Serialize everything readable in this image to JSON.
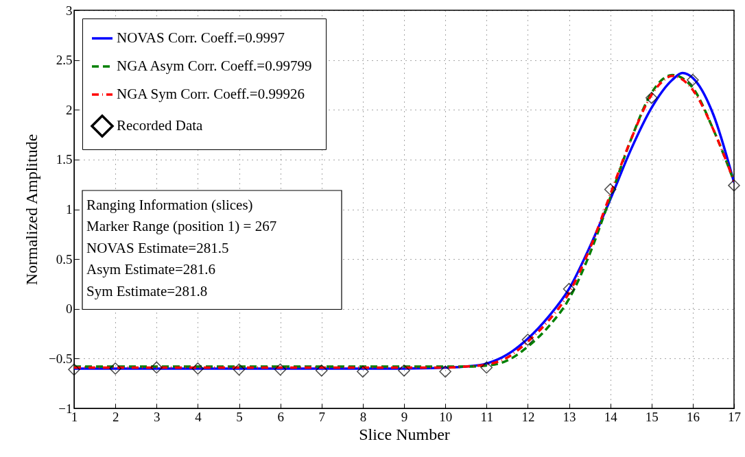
{
  "chart_data": {
    "type": "line",
    "xlabel": "Slice Number",
    "ylabel": "Normalized Amplitude",
    "xlim": [
      1,
      17
    ],
    "xticks": [
      1,
      2,
      3,
      4,
      5,
      6,
      7,
      8,
      9,
      10,
      11,
      12,
      13,
      14,
      15,
      16,
      17
    ],
    "ylim": [
      -1,
      3
    ],
    "yticks": [
      {
        "value": -1,
        "label": "−1"
      },
      {
        "value": -0.5,
        "label": "−0.5"
      },
      0,
      0.5,
      1,
      1.5,
      2,
      2.5,
      3
    ],
    "grid": true,
    "legend": "top left",
    "series": [
      {
        "name": "NOVAS Corr.  Coeff.=0.9997",
        "color": "#0000ff",
        "line_style": "solid",
        "marker": "none",
        "x": [
          1,
          2,
          3,
          4,
          5,
          6,
          7,
          8,
          9,
          10,
          10.5,
          11,
          11.5,
          12,
          12.5,
          13,
          13.5,
          14,
          14.5,
          15,
          15.5,
          15.75,
          16,
          16.5,
          17
        ],
        "values": [
          -0.6,
          -0.6,
          -0.6,
          -0.6,
          -0.6,
          -0.6,
          -0.6,
          -0.6,
          -0.6,
          -0.59,
          -0.58,
          -0.55,
          -0.46,
          -0.3,
          -0.08,
          0.2,
          0.62,
          1.1,
          1.6,
          2.02,
          2.3,
          2.37,
          2.32,
          1.95,
          1.27
        ]
      },
      {
        "name": "NGA Asym Corr.  Coeff.=0.99799",
        "color": "#008000",
        "line_style": "dashed",
        "marker": "none",
        "x": [
          1,
          2,
          3,
          4,
          5,
          6,
          7,
          8,
          9,
          10,
          10.5,
          11,
          11.5,
          12,
          12.5,
          13,
          13.5,
          14,
          14.5,
          15,
          15.25,
          15.5,
          16,
          16.5,
          17
        ],
        "values": [
          -0.58,
          -0.58,
          -0.58,
          -0.58,
          -0.58,
          -0.58,
          -0.58,
          -0.58,
          -0.58,
          -0.58,
          -0.58,
          -0.57,
          -0.52,
          -0.38,
          -0.18,
          0.1,
          0.55,
          1.12,
          1.7,
          2.17,
          2.3,
          2.35,
          2.22,
          1.8,
          1.28
        ]
      },
      {
        "name": "NGA Sym Corr.  Coeff.=0.99926",
        "color": "#ff0000",
        "line_style": "dashdot",
        "marker": "none",
        "x": [
          1,
          2,
          3,
          4,
          5,
          6,
          7,
          8,
          9,
          10,
          10.5,
          11,
          11.5,
          12,
          12.5,
          13,
          13.5,
          14,
          14.5,
          15,
          15.25,
          15.5,
          16,
          16.5,
          17
        ],
        "values": [
          -0.59,
          -0.59,
          -0.59,
          -0.59,
          -0.59,
          -0.59,
          -0.59,
          -0.59,
          -0.59,
          -0.59,
          -0.58,
          -0.56,
          -0.49,
          -0.33,
          -0.12,
          0.16,
          0.6,
          1.15,
          1.7,
          2.15,
          2.28,
          2.34,
          2.2,
          1.8,
          1.28
        ]
      },
      {
        "name": "Recorded Data",
        "type": "scatter",
        "color": "#000000",
        "marker": "diamond",
        "x": [
          1,
          2,
          3,
          4,
          5,
          6,
          7,
          8,
          9,
          10,
          11,
          12,
          13,
          14,
          15,
          16,
          17
        ],
        "values": [
          -0.61,
          -0.6,
          -0.59,
          -0.6,
          -0.61,
          -0.61,
          -0.62,
          -0.63,
          -0.62,
          -0.63,
          -0.59,
          -0.31,
          0.2,
          1.2,
          2.12,
          2.3,
          1.24
        ]
      }
    ],
    "annotations": [
      "Ranging Information (slices)",
      "Marker Range (position 1) = 267",
      "NOVAS Estimate=281.5",
      "Asym Estimate=281.6",
      "Sym Estimate=281.8"
    ]
  }
}
